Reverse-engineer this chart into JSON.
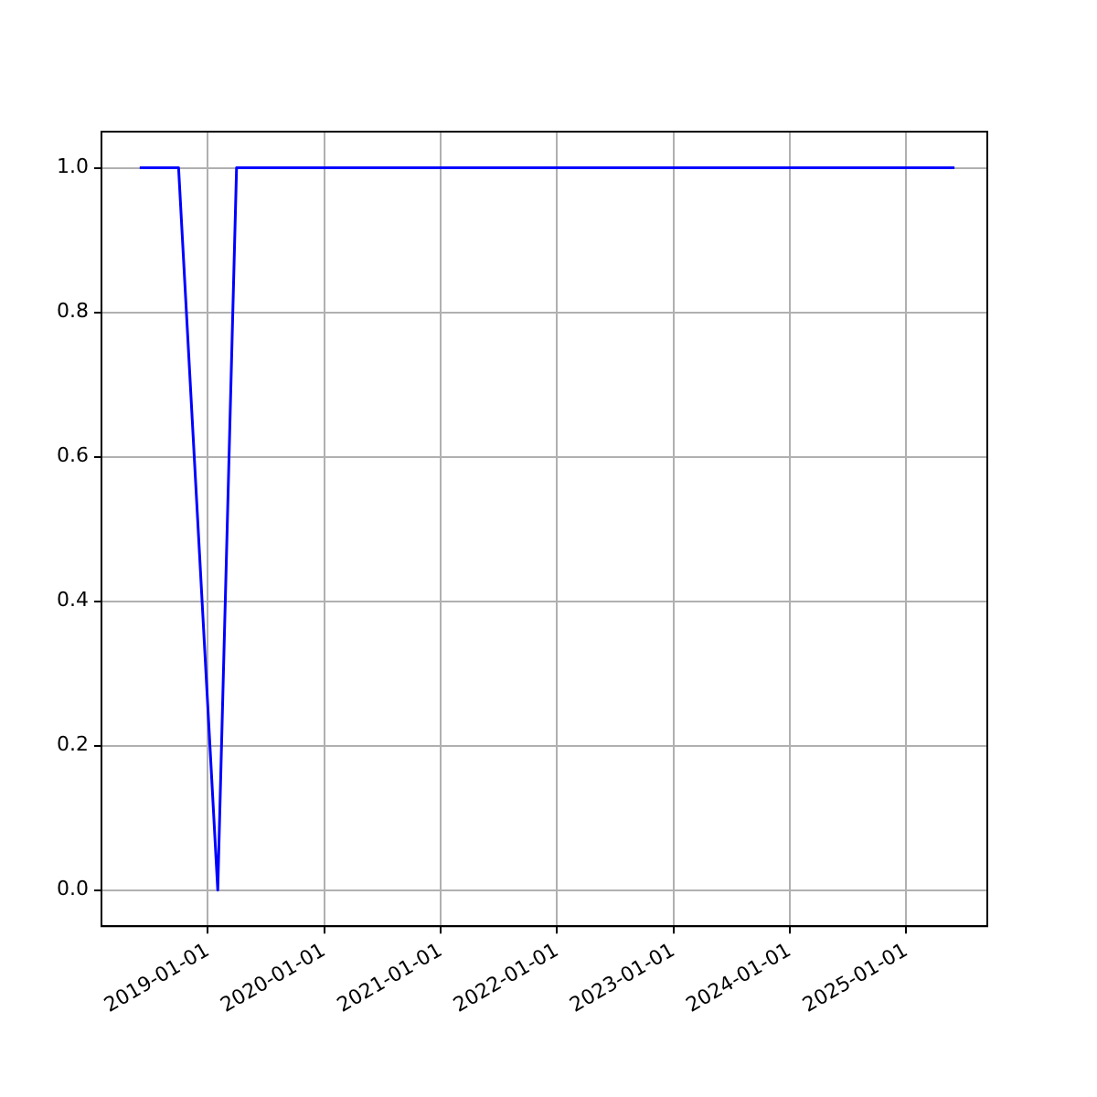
{
  "chart_data": {
    "type": "line",
    "x": [
      "2018-06-01",
      "2018-10-01",
      "2019-02-01",
      "2019-04-01",
      "2025-06-01"
    ],
    "series": [
      {
        "color": "#0000ff",
        "values": [
          1,
          1,
          0,
          1,
          1
        ]
      }
    ],
    "xlim": [
      "2018-02-01",
      "2025-09-12"
    ],
    "xticks": [
      "2019-01-01",
      "2020-01-01",
      "2021-01-01",
      "2022-01-01",
      "2023-01-01",
      "2024-01-01",
      "2025-01-01"
    ],
    "ylim": [
      -0.05,
      1.05
    ],
    "yticks": [
      {
        "value": 0,
        "label": "0.0"
      },
      {
        "value": 0.2,
        "label": "0.2"
      },
      {
        "value": 0.4,
        "label": "0.4"
      },
      {
        "value": 0.6,
        "label": "0.6"
      },
      {
        "value": 0.8,
        "label": "0.8"
      },
      {
        "value": 1,
        "label": "1.0"
      }
    ],
    "grid": true,
    "legend": false,
    "marker": "none",
    "line_style": "solid"
  }
}
